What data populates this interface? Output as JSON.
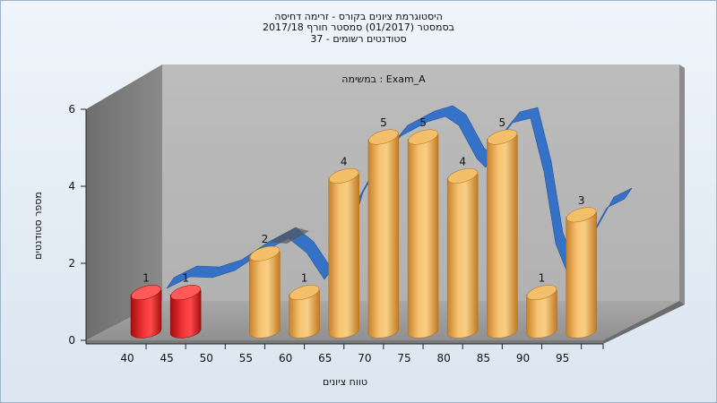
{
  "chart_data": {
    "type": "bar",
    "title_lines": [
      "היסטוגרמת ציונים בקורס - זרימה דחיסה",
      "בסמסטר  (01/2017)  סמסטר חורף  2017/18",
      "סטודנטים רשומים - 37"
    ],
    "subtitle": "במשימה : Exam_A",
    "xlabel": "טווח ציונים",
    "ylabel": "מספר סטודנטים",
    "x_tick_labels": [
      "40",
      "45",
      "50",
      "55",
      "60",
      "65",
      "70",
      "75",
      "80",
      "85",
      "90",
      "95"
    ],
    "categories": [
      "40",
      "45",
      "55",
      "60",
      "65",
      "70",
      "75",
      "80",
      "85",
      "90",
      "95"
    ],
    "values": [
      1,
      1,
      2,
      1,
      4,
      5,
      5,
      4,
      5,
      1,
      3
    ],
    "data_labels": [
      "1",
      "1",
      "2",
      "1",
      "4",
      "5",
      "5",
      "4",
      "5",
      "1",
      "3"
    ],
    "bar_colors": [
      "#e02020",
      "#e02020",
      "#f0b050",
      "#f0b050",
      "#f0b050",
      "#f0b050",
      "#f0b050",
      "#f0b050",
      "#f0b050",
      "#f0b050",
      "#f0b050"
    ],
    "ylim": [
      0,
      6
    ],
    "y_ticks": [
      "0",
      "2",
      "4",
      "6"
    ],
    "curve_color": "#2f6fc8",
    "grid": false,
    "legend": "none"
  }
}
